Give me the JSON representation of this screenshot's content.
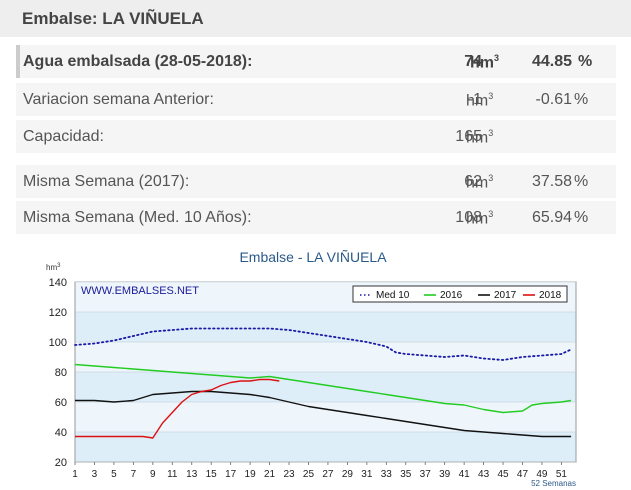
{
  "header": {
    "title": "Embalse: LA VIÑUELA"
  },
  "rows": [
    {
      "label": "Agua embalsada (28-05-2018):",
      "value": "74",
      "unit": "hm",
      "unit_exp": "3",
      "pct": "44.85",
      "pct_sign": "%"
    },
    {
      "label": "Variacion semana Anterior:",
      "value": "-1",
      "unit": "hm",
      "unit_exp": "3",
      "pct": "-0.61",
      "pct_sign": "%"
    },
    {
      "label": "Capacidad:",
      "value": "165",
      "unit": "hm",
      "unit_exp": "3",
      "pct": "",
      "pct_sign": ""
    },
    {
      "label": "Misma Semana (2017):",
      "value": "62",
      "unit": "hm",
      "unit_exp": "3",
      "pct": "37.58",
      "pct_sign": "%"
    },
    {
      "label": "Misma Semana (Med. 10 Años):",
      "value": "108",
      "unit": "hm",
      "unit_exp": "3",
      "pct": "65.94",
      "pct_sign": "%"
    }
  ],
  "colors": {
    "med10": "#1a1aa6",
    "y2016": "#22cc22",
    "y2017": "#111111",
    "y2018": "#dd1111",
    "plot_bg": "#ddeef8",
    "band": "#eef6fc"
  },
  "chart_data": {
    "type": "line",
    "title": "Embalse - LA VIÑUELA",
    "ylabel": "hm",
    "ylabel_exp": "3",
    "xlabel": "52 Semanas",
    "watermark": "WWW.EMBALSES.NET",
    "ylim": [
      20,
      140
    ],
    "yticks": [
      20,
      40,
      60,
      80,
      100,
      120,
      140
    ],
    "xlim": [
      1,
      52
    ],
    "xticks": [
      1,
      3,
      5,
      7,
      9,
      11,
      13,
      15,
      17,
      19,
      21,
      23,
      25,
      27,
      29,
      31,
      33,
      35,
      37,
      39,
      41,
      43,
      45,
      47,
      49,
      51
    ],
    "legend_position": "top-right",
    "series": [
      {
        "name": "Med 10",
        "color": "#1a1aa6",
        "style": "dotted",
        "x": [
          1,
          3,
          5,
          7,
          9,
          11,
          13,
          15,
          17,
          19,
          21,
          23,
          25,
          27,
          29,
          31,
          33,
          34,
          35,
          37,
          39,
          41,
          43,
          45,
          47,
          49,
          51,
          52
        ],
        "y": [
          98,
          99,
          101,
          104,
          107,
          108,
          109,
          109,
          109,
          109,
          109,
          108,
          106,
          104,
          102,
          100,
          97,
          93,
          92,
          91,
          90,
          91,
          89,
          88,
          90,
          91,
          92,
          95
        ]
      },
      {
        "name": "2016",
        "color": "#22cc22",
        "style": "solid",
        "x": [
          1,
          3,
          5,
          7,
          9,
          11,
          13,
          15,
          17,
          19,
          21,
          23,
          25,
          27,
          29,
          31,
          33,
          35,
          37,
          39,
          41,
          43,
          45,
          47,
          48,
          49,
          51,
          52
        ],
        "y": [
          85,
          84,
          83,
          82,
          81,
          80,
          79,
          78,
          77,
          76,
          77,
          75,
          73,
          71,
          69,
          67,
          65,
          63,
          61,
          59,
          58,
          55,
          53,
          54,
          58,
          59,
          60,
          61
        ]
      },
      {
        "name": "2017",
        "color": "#111111",
        "style": "solid",
        "x": [
          1,
          3,
          5,
          7,
          9,
          11,
          13,
          15,
          17,
          19,
          21,
          23,
          25,
          27,
          29,
          31,
          33,
          35,
          37,
          39,
          41,
          43,
          45,
          47,
          49,
          51,
          52
        ],
        "y": [
          61,
          61,
          60,
          61,
          65,
          66,
          67,
          67,
          66,
          65,
          63,
          60,
          57,
          55,
          53,
          51,
          49,
          47,
          45,
          43,
          41,
          40,
          39,
          38,
          37,
          37,
          37
        ]
      },
      {
        "name": "2018",
        "color": "#dd1111",
        "style": "solid",
        "x": [
          1,
          3,
          5,
          7,
          8,
          9,
          10,
          11,
          12,
          13,
          14,
          15,
          16,
          17,
          18,
          19,
          20,
          21,
          22
        ],
        "y": [
          37,
          37,
          37,
          37,
          37,
          36,
          46,
          53,
          60,
          65,
          67,
          68,
          71,
          73,
          74,
          74,
          75,
          75,
          74
        ]
      }
    ]
  }
}
